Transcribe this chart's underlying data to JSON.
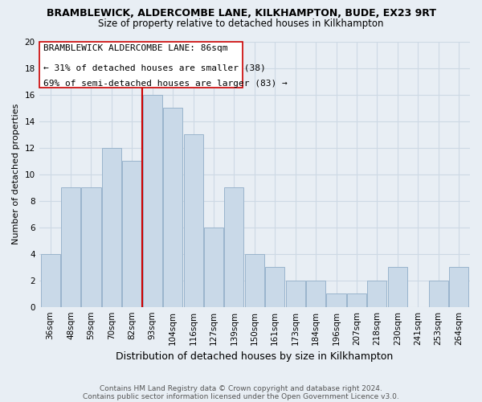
{
  "title": "BRAMBLEWICK, ALDERCOMBE LANE, KILKHAMPTON, BUDE, EX23 9RT",
  "subtitle": "Size of property relative to detached houses in Kilkhampton",
  "xlabel": "Distribution of detached houses by size in Kilkhampton",
  "ylabel": "Number of detached properties",
  "footer_line1": "Contains HM Land Registry data © Crown copyright and database right 2024.",
  "footer_line2": "Contains public sector information licensed under the Open Government Licence v3.0.",
  "bin_labels": [
    "36sqm",
    "48sqm",
    "59sqm",
    "70sqm",
    "82sqm",
    "93sqm",
    "104sqm",
    "116sqm",
    "127sqm",
    "139sqm",
    "150sqm",
    "161sqm",
    "173sqm",
    "184sqm",
    "196sqm",
    "207sqm",
    "218sqm",
    "230sqm",
    "241sqm",
    "253sqm",
    "264sqm"
  ],
  "bar_values": [
    4,
    9,
    9,
    12,
    11,
    16,
    15,
    13,
    6,
    9,
    4,
    3,
    2,
    2,
    1,
    1,
    2,
    3,
    0,
    2,
    3
  ],
  "bar_color": "#c9d9e8",
  "bar_edge_color": "#9ab4cc",
  "vline_x_idx": 4.5,
  "vline_color": "#cc0000",
  "ylim": [
    0,
    20
  ],
  "yticks": [
    0,
    2,
    4,
    6,
    8,
    10,
    12,
    14,
    16,
    18,
    20
  ],
  "ann_line1": "BRAMBLEWICK ALDERCOMBE LANE: 86sqm",
  "ann_line2": "← 31% of detached houses are smaller (38)",
  "ann_line3": "69% of semi-detached houses are larger (83) →",
  "grid_color": "#cdd9e4",
  "bg_color": "#e8eef4",
  "title_fontsize": 9.0,
  "subtitle_fontsize": 8.5,
  "xlabel_fontsize": 9.0,
  "ylabel_fontsize": 8.0,
  "tick_fontsize": 7.5,
  "footer_fontsize": 6.5,
  "ann_fontsize": 8.0
}
